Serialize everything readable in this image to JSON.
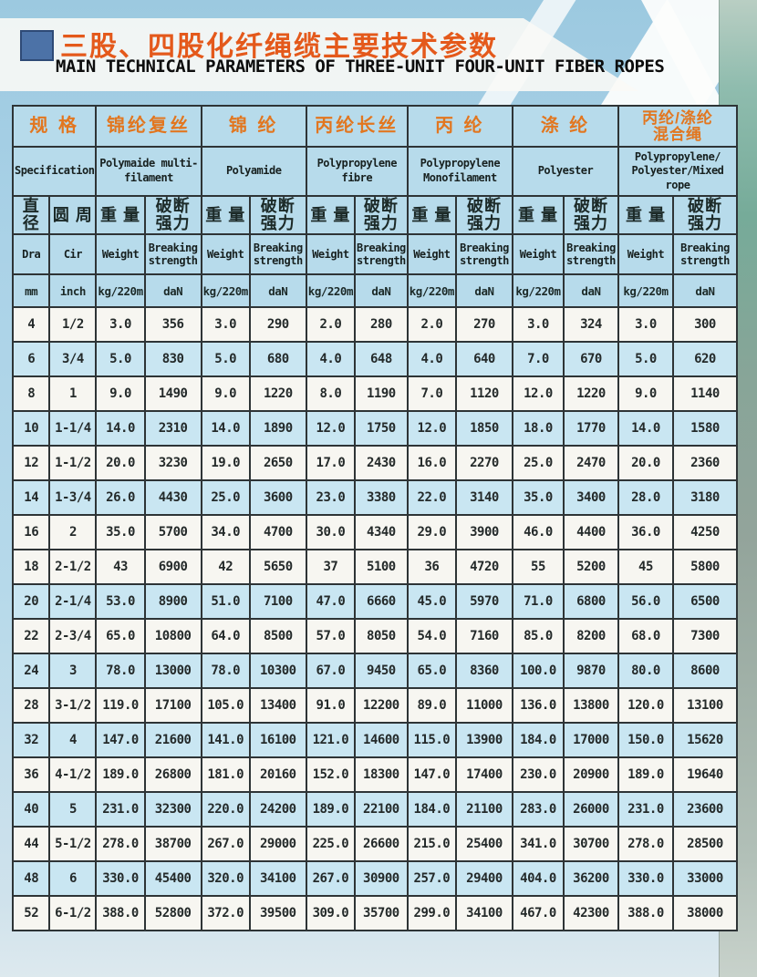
{
  "page_header": {
    "title_zh": "三股、四股化纤绳缆主要技术参数",
    "title_en": "MAIN TECHNICAL PARAMETERS OF THREE-UNIT FOUR-UNIT FIBER ROPES"
  },
  "colors": {
    "accent_orange": "#e2761f",
    "header_border_orange": "#d06e2a",
    "table_bg_blue": "#b7dbeb",
    "row_white": "#f7f6f1",
    "row_blue": "#c9e6f2",
    "bullet_blue": "#4c72a7"
  },
  "table": {
    "spec_group": {
      "zh": "规 格",
      "en": "Specification"
    },
    "material_groups": [
      {
        "zh": "锦纶复丝",
        "en": "Polymaide multi-\nfilament"
      },
      {
        "zh": "锦 纶",
        "en": "Polyamide"
      },
      {
        "zh": "丙纶长丝",
        "en": "Polypropylene\nfibre"
      },
      {
        "zh": "丙 纶",
        "en": "Polypropylene\nMonofilament"
      },
      {
        "zh": "涤 纶",
        "en": "Polyester"
      },
      {
        "zh": "丙纶/涤纶\n混合绳",
        "en": "Polypropylene/\nPolyester/Mixed\nrope"
      }
    ],
    "spec_cols": [
      {
        "zh": "直径",
        "en": "Dra",
        "unit": "mm"
      },
      {
        "zh": "圆 周",
        "en": "Cir",
        "unit": "inch"
      }
    ],
    "metric_cols": [
      {
        "zh": "重 量",
        "en": "Weight",
        "unit": "kg/220m"
      },
      {
        "zh": "破断\n强力",
        "en": "Breaking\nstrength",
        "unit": "daN"
      }
    ],
    "rows": [
      {
        "shade": "white",
        "cells": [
          "4",
          "1/2",
          "3.0",
          "356",
          "3.0",
          "290",
          "2.0",
          "280",
          "2.0",
          "270",
          "3.0",
          "324",
          "3.0",
          "300"
        ]
      },
      {
        "shade": "blue",
        "cells": [
          "6",
          "3/4",
          "5.0",
          "830",
          "5.0",
          "680",
          "4.0",
          "648",
          "4.0",
          "640",
          "7.0",
          "670",
          "5.0",
          "620"
        ]
      },
      {
        "shade": "white",
        "cells": [
          "8",
          "1",
          "9.0",
          "1490",
          "9.0",
          "1220",
          "8.0",
          "1190",
          "7.0",
          "1120",
          "12.0",
          "1220",
          "9.0",
          "1140"
        ]
      },
      {
        "shade": "blue",
        "cells": [
          "10",
          "1-1/4",
          "14.0",
          "2310",
          "14.0",
          "1890",
          "12.0",
          "1750",
          "12.0",
          "1850",
          "18.0",
          "1770",
          "14.0",
          "1580"
        ]
      },
      {
        "shade": "white",
        "cells": [
          "12",
          "1-1/2",
          "20.0",
          "3230",
          "19.0",
          "2650",
          "17.0",
          "2430",
          "16.0",
          "2270",
          "25.0",
          "2470",
          "20.0",
          "2360"
        ]
      },
      {
        "shade": "blue",
        "cells": [
          "14",
          "1-3/4",
          "26.0",
          "4430",
          "25.0",
          "3600",
          "23.0",
          "3380",
          "22.0",
          "3140",
          "35.0",
          "3400",
          "28.0",
          "3180"
        ]
      },
      {
        "shade": "white",
        "cells": [
          "16",
          "2",
          "35.0",
          "5700",
          "34.0",
          "4700",
          "30.0",
          "4340",
          "29.0",
          "3900",
          "46.0",
          "4400",
          "36.0",
          "4250"
        ]
      },
      {
        "shade": "white",
        "cells": [
          "18",
          "2-1/2",
          "43",
          "6900",
          "42",
          "5650",
          "37",
          "5100",
          "36",
          "4720",
          "55",
          "5200",
          "45",
          "5800"
        ]
      },
      {
        "shade": "blue",
        "cells": [
          "20",
          "2-1/4",
          "53.0",
          "8900",
          "51.0",
          "7100",
          "47.0",
          "6660",
          "45.0",
          "5970",
          "71.0",
          "6800",
          "56.0",
          "6500"
        ]
      },
      {
        "shade": "white",
        "cells": [
          "22",
          "2-3/4",
          "65.0",
          "10800",
          "64.0",
          "8500",
          "57.0",
          "8050",
          "54.0",
          "7160",
          "85.0",
          "8200",
          "68.0",
          "7300"
        ]
      },
      {
        "shade": "blue",
        "cells": [
          "24",
          "3",
          "78.0",
          "13000",
          "78.0",
          "10300",
          "67.0",
          "9450",
          "65.0",
          "8360",
          "100.0",
          "9870",
          "80.0",
          "8600"
        ]
      },
      {
        "shade": "white",
        "cells": [
          "28",
          "3-1/2",
          "119.0",
          "17100",
          "105.0",
          "13400",
          "91.0",
          "12200",
          "89.0",
          "11000",
          "136.0",
          "13800",
          "120.0",
          "13100"
        ]
      },
      {
        "shade": "blue",
        "cells": [
          "32",
          "4",
          "147.0",
          "21600",
          "141.0",
          "16100",
          "121.0",
          "14600",
          "115.0",
          "13900",
          "184.0",
          "17000",
          "150.0",
          "15620"
        ]
      },
      {
        "shade": "white",
        "cells": [
          "36",
          "4-1/2",
          "189.0",
          "26800",
          "181.0",
          "20160",
          "152.0",
          "18300",
          "147.0",
          "17400",
          "230.0",
          "20900",
          "189.0",
          "19640"
        ]
      },
      {
        "shade": "blue",
        "cells": [
          "40",
          "5",
          "231.0",
          "32300",
          "220.0",
          "24200",
          "189.0",
          "22100",
          "184.0",
          "21100",
          "283.0",
          "26000",
          "231.0",
          "23600"
        ]
      },
      {
        "shade": "white",
        "cells": [
          "44",
          "5-1/2",
          "278.0",
          "38700",
          "267.0",
          "29000",
          "225.0",
          "26600",
          "215.0",
          "25400",
          "341.0",
          "30700",
          "278.0",
          "28500"
        ]
      },
      {
        "shade": "blue",
        "cells": [
          "48",
          "6",
          "330.0",
          "45400",
          "320.0",
          "34100",
          "267.0",
          "30900",
          "257.0",
          "29400",
          "404.0",
          "36200",
          "330.0",
          "33000"
        ]
      },
      {
        "shade": "white",
        "cells": [
          "52",
          "6-1/2",
          "388.0",
          "52800",
          "372.0",
          "39500",
          "309.0",
          "35700",
          "299.0",
          "34100",
          "467.0",
          "42300",
          "388.0",
          "38000"
        ]
      }
    ]
  }
}
